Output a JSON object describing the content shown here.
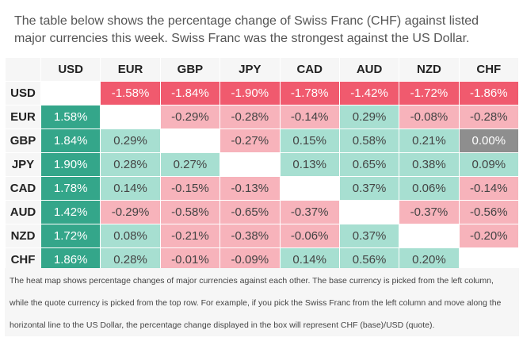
{
  "intro": "The table below shows the percentage change of Swiss Franc (CHF) against listed major currencies this week. Swiss Franc was the strongest against the US Dollar.",
  "heatmap": {
    "columns": [
      "USD",
      "EUR",
      "GBP",
      "JPY",
      "CAD",
      "AUD",
      "NZD",
      "CHF"
    ],
    "rows": [
      {
        "base": "USD",
        "cells": [
          "",
          "-1.58%",
          "-1.84%",
          "-1.90%",
          "-1.78%",
          "-1.42%",
          "-1.72%",
          "-1.86%"
        ]
      },
      {
        "base": "EUR",
        "cells": [
          "1.58%",
          "",
          "-0.29%",
          "-0.28%",
          "-0.14%",
          "0.29%",
          "-0.08%",
          "-0.28%"
        ]
      },
      {
        "base": "GBP",
        "cells": [
          "1.84%",
          "0.29%",
          "",
          "-0.27%",
          "0.15%",
          "0.58%",
          "0.21%",
          "0.00%"
        ]
      },
      {
        "base": "JPY",
        "cells": [
          "1.90%",
          "0.28%",
          "0.27%",
          "",
          "0.13%",
          "0.65%",
          "0.38%",
          "0.09%"
        ]
      },
      {
        "base": "CAD",
        "cells": [
          "1.78%",
          "0.14%",
          "-0.15%",
          "-0.13%",
          "",
          "0.37%",
          "0.06%",
          "-0.14%"
        ]
      },
      {
        "base": "AUD",
        "cells": [
          "1.42%",
          "-0.29%",
          "-0.58%",
          "-0.65%",
          "-0.37%",
          "",
          "-0.37%",
          "-0.56%"
        ]
      },
      {
        "base": "NZD",
        "cells": [
          "1.72%",
          "0.08%",
          "-0.21%",
          "-0.38%",
          "-0.06%",
          "0.37%",
          "",
          "-0.20%"
        ]
      },
      {
        "base": "CHF",
        "cells": [
          "1.86%",
          "0.28%",
          "-0.01%",
          "-0.09%",
          "0.14%",
          "0.56%",
          "0.20%",
          ""
        ]
      }
    ]
  },
  "colors": {
    "strong_positive": "#34a68a",
    "positive": "#a7dfd1",
    "strong_negative": "#f05a6e",
    "negative": "#f7b3bb",
    "neutral": "#8e8e8e",
    "empty": "#ffffff"
  },
  "note": "The heat map shows percentage changes of major currencies against each other. The base currency is picked from the left column, while the quote currency is picked from the top row. For example, if you pick the Swiss Franc from the left column and move along the horizontal line to the US Dollar, the percentage change displayed in the box will represent CHF (base)/USD (quote)."
}
